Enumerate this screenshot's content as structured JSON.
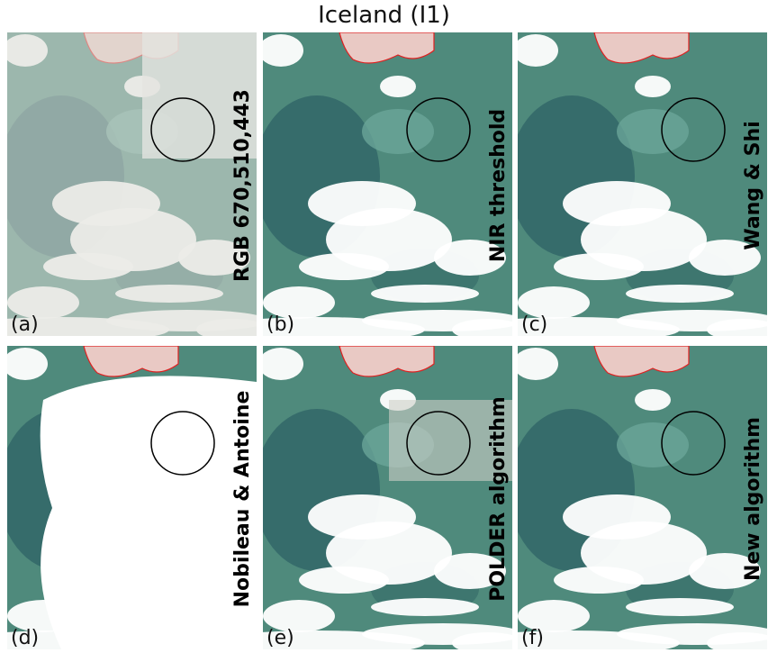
{
  "title": "Iceland (I1)",
  "panels": [
    {
      "label": "(a)",
      "method": "RGB 670,510,443"
    },
    {
      "label": "(b)",
      "method": "NIR threshold"
    },
    {
      "label": "(c)",
      "method": "Wang & Shi"
    },
    {
      "label": "(d)",
      "method": "Nobileau & Antoine"
    },
    {
      "label": "(e)",
      "method": "POLDER algorithm"
    },
    {
      "label": "(f)",
      "method": "New algorithm"
    }
  ]
}
